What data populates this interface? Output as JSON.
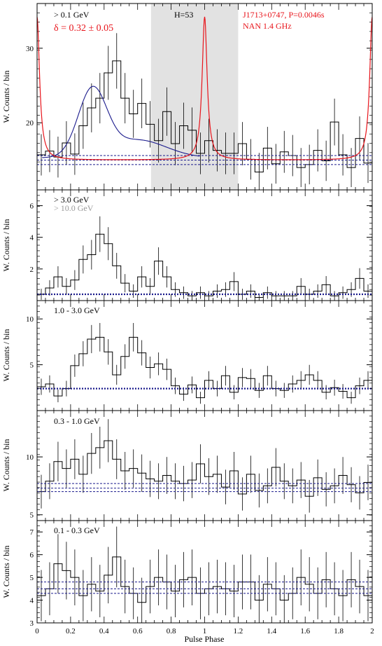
{
  "colors": {
    "histogram": "#000000",
    "radio_profile": "#e8141b",
    "fit_curve": "#1a1a8c",
    "background_level": "#1a1a8c",
    "offpulse_band": "#e2e2e2",
    "high_energy_hist": "#888888",
    "dim_annotation": "#9a9a9a"
  },
  "x_axis": {
    "label": "Pulse Phase",
    "ticks": [
      "0",
      "0.2",
      "0.4",
      "0.6",
      "0.8",
      "1",
      "1.2",
      "1.4",
      "1.6",
      "1.8",
      "2"
    ],
    "range": [
      0,
      2
    ]
  },
  "chart_data": [
    {
      "type": "histogram",
      "energy": "> 0.1 GeV",
      "ylabel": "W. Counts / bin",
      "ylim": [
        11,
        36
      ],
      "yticks": [
        "20",
        "30"
      ],
      "annotations": {
        "energy": "> 0.1 GeV",
        "delta": "δ = 0.32 ± 0.05",
        "htest": "H=53",
        "pulsar": "J1713+0747, P=0.0046s",
        "radio": "NAN 1.4 GHz"
      },
      "offpulse_phase": [
        0.68,
        1.2
      ],
      "background_levels": [
        14.4,
        15.0,
        15.6
      ],
      "counts": [
        15.7,
        16.2,
        15.4,
        17.3,
        15.8,
        19.6,
        22.0,
        23.3,
        26.7,
        28.3,
        23.3,
        21.2,
        22.6,
        19.8,
        17.6,
        21.5,
        17.2,
        19.6,
        19.0,
        15.9,
        17.6,
        16.3,
        15.9,
        15.9,
        17.2,
        15.1,
        13.4,
        16.6,
        14.5,
        16.1,
        15.6,
        14.0,
        14.4,
        16.3,
        14.9,
        20.1,
        15.7,
        14.0,
        17.9,
        14.6
      ]
    },
    {
      "type": "histogram",
      "energy": "> 3.0 GeV",
      "ylabel": "W. Counts / bin",
      "ylim": [
        0,
        7
      ],
      "yticks": [
        "2",
        "4",
        "6"
      ],
      "annotations": {
        "energy": "> 3.0 GeV",
        "energy_secondary": "> 10.0 GeV"
      },
      "background_level": 0.4,
      "counts": [
        0.4,
        0.8,
        1.5,
        0.9,
        1.3,
        2.6,
        2.9,
        4.2,
        3.6,
        2.2,
        1.1,
        0.6,
        1.5,
        0.9,
        2.5,
        1.5,
        0.7,
        0.5,
        0.3,
        0.5,
        0.3,
        0.6,
        0.7,
        1.2,
        0.4,
        0.6,
        0.2,
        0.5,
        0.3,
        0.3,
        0.3,
        0.9,
        0.4,
        0.6,
        1.0,
        0.3,
        0.5,
        0.7,
        1.4,
        0.6
      ],
      "counts_high": [
        0,
        0,
        0,
        0,
        0,
        0,
        0,
        0,
        0.25,
        0,
        0,
        0,
        0,
        0,
        0,
        0,
        0,
        0,
        0,
        0,
        0,
        0,
        0,
        0,
        0,
        0,
        0,
        0,
        0,
        0,
        0,
        0,
        0,
        0,
        0,
        0,
        0,
        0,
        0,
        0
      ]
    },
    {
      "type": "histogram",
      "energy": "1.0 - 3.0 GeV",
      "ylabel": "W. Counts / bin",
      "ylim": [
        0,
        12
      ],
      "yticks": [
        "5",
        "10"
      ],
      "annotations": {
        "energy": "1.0 - 3.0 GeV"
      },
      "background_level": 2.4,
      "counts": [
        2.6,
        2.9,
        1.6,
        2.4,
        4.9,
        6.2,
        7.8,
        8.0,
        6.4,
        3.9,
        5.9,
        8.0,
        6.3,
        4.7,
        5.1,
        4.5,
        2.7,
        1.8,
        2.8,
        1.4,
        3.3,
        2.4,
        3.8,
        2.0,
        3.6,
        3.5,
        2.2,
        3.8,
        2.4,
        2.2,
        2.9,
        3.3,
        3.9,
        3.3,
        2.0,
        2.5,
        2.1,
        1.4,
        2.7,
        3.3
      ]
    },
    {
      "type": "histogram",
      "energy": "0.3 - 1.0 GeV",
      "ylabel": "W. Counts / bin",
      "ylim": [
        4.5,
        14
      ],
      "yticks": [
        "5",
        "10"
      ],
      "annotations": {
        "energy": "0.3 - 1.0 GeV"
      },
      "background_levels": [
        7.0,
        7.3,
        7.7
      ],
      "counts": [
        7.0,
        7.9,
        9.6,
        9.0,
        9.8,
        8.5,
        10.3,
        10.8,
        11.4,
        9.8,
        8.8,
        9.0,
        8.6,
        8.1,
        7.9,
        8.4,
        7.9,
        7.7,
        8.0,
        9.4,
        8.3,
        8.5,
        7.4,
        8.8,
        6.8,
        8.5,
        7.1,
        7.5,
        9.1,
        7.9,
        7.5,
        8.0,
        6.6,
        8.2,
        7.2,
        7.5,
        8.4,
        7.6,
        6.9,
        7.8
      ]
    },
    {
      "type": "histogram",
      "energy": "0.1 - 0.3 GeV",
      "ylabel": "W. Counts / bin",
      "ylim": [
        3,
        7.5
      ],
      "yticks": [
        "3",
        "4",
        "5",
        "6",
        "7"
      ],
      "annotations": {
        "energy": "0.1 - 0.3 GeV"
      },
      "background_levels": [
        4.3,
        4.5,
        4.8
      ],
      "counts": [
        4.2,
        4.5,
        5.6,
        5.3,
        5.0,
        4.2,
        4.7,
        4.4,
        5.1,
        5.9,
        4.6,
        4.3,
        3.9,
        4.6,
        5.0,
        4.8,
        4.4,
        4.9,
        5.0,
        4.3,
        4.5,
        4.6,
        4.5,
        4.4,
        4.8,
        4.8,
        4.0,
        4.7,
        4.5,
        4.0,
        4.3,
        5.0,
        4.7,
        4.3,
        4.9,
        4.5,
        4.2,
        4.9,
        4.6,
        4.2
      ]
    }
  ]
}
